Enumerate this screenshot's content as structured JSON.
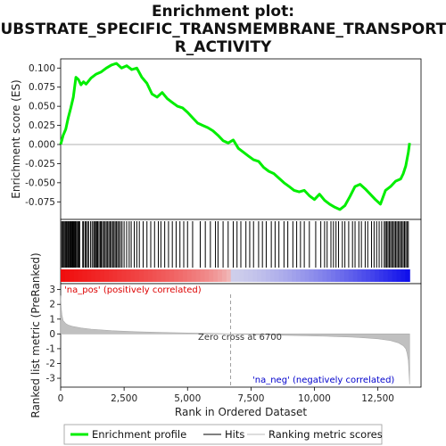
{
  "chart_data": [
    {
      "panel": "enrichment",
      "type": "line",
      "title_lines": [
        "Enrichment plot:",
        "SUBSTRATE_SPECIFIC_TRANSMEMBRANE_TRANSPORTE",
        "R_ACTIVITY"
      ],
      "ylabel": "Enrichment score (ES)",
      "ylim": [
        -0.098,
        0.112
      ],
      "yticks": [
        0.1,
        0.075,
        0.05,
        0.025,
        0.0,
        -0.025,
        -0.05,
        -0.075
      ],
      "ytick_labels": [
        "0.100",
        "0.075",
        "0.050",
        "0.025",
        "0.000",
        "-0.025",
        "-0.050",
        "-0.075"
      ],
      "xlim": [
        0,
        14200
      ],
      "series": [
        {
          "name": "Enrichment profile",
          "color": "#00ee00",
          "x": [
            0,
            100,
            200,
            300,
            400,
            500,
            600,
            700,
            800,
            900,
            1000,
            1200,
            1400,
            1600,
            1800,
            2000,
            2200,
            2400,
            2600,
            2800,
            3000,
            3200,
            3400,
            3600,
            3800,
            4000,
            4200,
            4400,
            4600,
            4800,
            5000,
            5200,
            5400,
            5600,
            5800,
            6000,
            6200,
            6400,
            6600,
            6800,
            7000,
            7200,
            7400,
            7600,
            7800,
            8000,
            8200,
            8400,
            8600,
            8800,
            9000,
            9200,
            9400,
            9600,
            9800,
            10000,
            10200,
            10400,
            10600,
            10800,
            11000,
            11200,
            11400,
            11600,
            11800,
            12000,
            12200,
            12400,
            12600,
            12800,
            13000,
            13200,
            13400,
            13500,
            13600,
            13700,
            13750
          ],
          "y": [
            0.0,
            0.012,
            0.02,
            0.035,
            0.048,
            0.062,
            0.088,
            0.085,
            0.078,
            0.082,
            0.079,
            0.087,
            0.092,
            0.095,
            0.1,
            0.104,
            0.106,
            0.1,
            0.103,
            0.098,
            0.1,
            0.088,
            0.08,
            0.066,
            0.062,
            0.068,
            0.06,
            0.055,
            0.05,
            0.048,
            0.042,
            0.035,
            0.028,
            0.025,
            0.022,
            0.018,
            0.012,
            0.005,
            0.002,
            0.006,
            -0.005,
            -0.01,
            -0.015,
            -0.02,
            -0.022,
            -0.03,
            -0.035,
            -0.038,
            -0.044,
            -0.05,
            -0.055,
            -0.06,
            -0.062,
            -0.06,
            -0.067,
            -0.072,
            -0.065,
            -0.073,
            -0.078,
            -0.082,
            -0.085,
            -0.08,
            -0.068,
            -0.055,
            -0.052,
            -0.058,
            -0.065,
            -0.072,
            -0.078,
            -0.06,
            -0.055,
            -0.048,
            -0.045,
            -0.038,
            -0.028,
            -0.01,
            0.002
          ]
        }
      ],
      "zero_line": 0.0
    },
    {
      "panel": "hits",
      "type": "scatter",
      "name": "Hits",
      "hit_ranks": [
        40,
        80,
        110,
        150,
        190,
        230,
        270,
        300,
        340,
        370,
        400,
        430,
        460,
        490,
        520,
        550,
        580,
        600,
        640,
        680,
        720,
        750,
        870,
        900,
        960,
        1000,
        1060,
        1100,
        1180,
        1240,
        1300,
        1340,
        1380,
        1420,
        1460,
        1510,
        1560,
        1600,
        1650,
        1700,
        1750,
        1800,
        1850,
        1900,
        1950,
        2000,
        2050,
        2100,
        2150,
        2200,
        2250,
        2300,
        2360,
        2420,
        2500,
        2600,
        2700,
        2780,
        2900,
        3000,
        3100,
        3250,
        3400,
        3550,
        3700,
        3850,
        3950,
        4100,
        4250,
        4400,
        4550,
        4700,
        4850,
        5000,
        5200,
        5500,
        5700,
        5900,
        6100,
        6200,
        6400,
        6600,
        6800,
        6950,
        7100,
        7300,
        7450,
        7600,
        7800,
        7950,
        8100,
        8300,
        8450,
        8600,
        8800,
        8950,
        9150,
        9300,
        9450,
        9600,
        9800,
        10050,
        10250,
        10400,
        10500,
        10650,
        10750,
        10850,
        10950,
        11100,
        11200,
        11350,
        11500,
        11600,
        11750,
        11850,
        12000,
        12100,
        12250,
        12350,
        12450,
        12550,
        12650,
        12750,
        12800,
        12850,
        12900,
        12950,
        13000,
        13050,
        13100,
        13150,
        13200,
        13250,
        13300,
        13350,
        13400,
        13450,
        13500,
        13550,
        13600,
        13650,
        13700
      ]
    },
    {
      "panel": "ranked-metric",
      "type": "area",
      "ylabel": "Ranked list metric (PreRanked)",
      "xlabel": "Rank in Ordered Dataset",
      "ylim": [
        -3.6,
        3.4
      ],
      "yticks": [
        3,
        2,
        1,
        0,
        -1,
        -2,
        -3
      ],
      "ytick_labels": [
        "3",
        "2",
        "1",
        "0",
        "-1",
        "-2",
        "-3"
      ],
      "xticks": [
        0,
        2500,
        5000,
        7500,
        10000,
        12500
      ],
      "xtick_labels": [
        "0",
        "2,500",
        "5,000",
        "7,500",
        "10,000",
        "12,500"
      ],
      "xlim": [
        0,
        14200
      ],
      "series": [
        {
          "name": "Ranking metric scores",
          "color": "#c0c0c0",
          "x": [
            0,
            20,
            50,
            100,
            200,
            300,
            500,
            800,
            1200,
            2000,
            3000,
            4000,
            5000,
            6000,
            6700,
            7500,
            8500,
            9500,
            10500,
            11500,
            12000,
            12500,
            13000,
            13300,
            13500,
            13600,
            13650,
            13700,
            13720,
            13740,
            13750
          ],
          "y": [
            2.6,
            1.8,
            1.3,
            0.9,
            0.7,
            0.6,
            0.5,
            0.4,
            0.32,
            0.22,
            0.15,
            0.1,
            0.06,
            0.03,
            0.0,
            -0.04,
            -0.08,
            -0.12,
            -0.16,
            -0.22,
            -0.27,
            -0.33,
            -0.45,
            -0.6,
            -0.8,
            -1.0,
            -1.3,
            -1.8,
            -2.4,
            -3.0,
            -3.4
          ]
        }
      ],
      "zero_cross_rank": 6700,
      "zero_cross_label": "Zero cross at 6700",
      "pos_label": "'na_pos' (positively correlated)",
      "neg_label": "'na_neg' (negatively correlated)",
      "pos_color": "#dd0000",
      "neg_color": "#0000cc"
    }
  ],
  "legend": {
    "items": [
      {
        "label": "Enrichment profile",
        "color": "#00ee00",
        "kind": "thick-line"
      },
      {
        "label": "Hits",
        "color": "#000000",
        "kind": "line"
      },
      {
        "label": "Ranking metric scores",
        "color": "#c0c0c0",
        "kind": "line"
      }
    ]
  }
}
